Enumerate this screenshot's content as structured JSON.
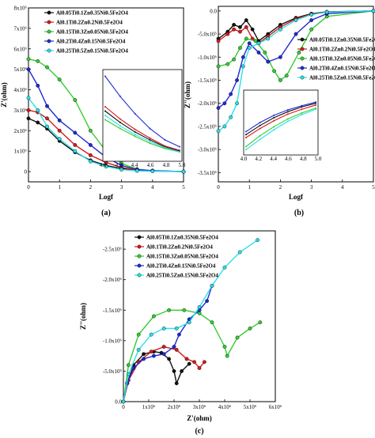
{
  "colors": {
    "black": "#111111",
    "red": "#d7191c",
    "green": "#33cc33",
    "blue": "#1f2ad6",
    "cyan": "#2be0e8"
  },
  "legend_entries": [
    "Al0.05Ti0.1Zn0.35Ni0.5Fe2O4",
    "Al0.1Ti0.2Zn0.2Ni0.5Fe2O4",
    "Al0.15Ti0.3Zn0.05Ni0.5Fe2O4",
    "Al0.2Ti0.4Zn0.15Ni0.5Fe2O4",
    "Al0.25Ti0.5Zn0.15Ni0.5Fe2O4"
  ],
  "chart_data": [
    {
      "panel_label": "(a)",
      "type": "line",
      "xlabel": "Logf",
      "ylabel": "Z'(ohm)",
      "xlim": [
        0,
        5
      ],
      "ylim": [
        -500000,
        8000000
      ],
      "x_ticks": [
        "0",
        "1",
        "2",
        "3",
        "4",
        "5"
      ],
      "y_ticks": [
        "0",
        "1x10⁶",
        "2x10⁶",
        "3x10⁶",
        "4x10⁶",
        "5x10⁶",
        "6x10⁶",
        "7x10⁶",
        "8x10⁶"
      ],
      "series": [
        {
          "name": "Al0.05Ti0.1Zn0.35Ni0.5Fe2O4",
          "color_key": "black",
          "points": [
            [
              0,
              2600000
            ],
            [
              0.3,
              2400000
            ],
            [
              0.6,
              2100000
            ],
            [
              1,
              1500000
            ],
            [
              1.5,
              950000
            ],
            [
              2,
              550000
            ],
            [
              2.5,
              300000
            ],
            [
              3,
              150000
            ],
            [
              3.5,
              60000
            ],
            [
              4,
              30000
            ],
            [
              5,
              0
            ]
          ]
        },
        {
          "name": "Al0.1Ti0.2Zn0.2Ni0.5Fe2O4",
          "color_key": "red",
          "points": [
            [
              0,
              3000000
            ],
            [
              0.3,
              2900000
            ],
            [
              0.6,
              2600000
            ],
            [
              1,
              2000000
            ],
            [
              1.5,
              1300000
            ],
            [
              2,
              800000
            ],
            [
              2.5,
              450000
            ],
            [
              3,
              200000
            ],
            [
              3.5,
              80000
            ],
            [
              4,
              40000
            ],
            [
              5,
              0
            ]
          ]
        },
        {
          "name": "Al0.15Ti0.3Zn0.05Ni0.5Fe2O4",
          "color_key": "green",
          "points": [
            [
              0,
              5500000
            ],
            [
              0.3,
              5400000
            ],
            [
              0.6,
              5100000
            ],
            [
              1,
              4500000
            ],
            [
              1.5,
              3500000
            ],
            [
              2,
              2000000
            ],
            [
              2.5,
              1000000
            ],
            [
              3,
              400000
            ],
            [
              3.5,
              120000
            ],
            [
              4,
              40000
            ],
            [
              5,
              0
            ]
          ]
        },
        {
          "name": "Al0.2Ti0.4Zn0.15Ni0.5Fe2O4",
          "color_key": "blue",
          "points": [
            [
              0,
              5000000
            ],
            [
              0.3,
              4200000
            ],
            [
              0.6,
              3200000
            ],
            [
              1,
              2500000
            ],
            [
              1.5,
              1900000
            ],
            [
              2,
              1300000
            ],
            [
              2.5,
              700000
            ],
            [
              3,
              300000
            ],
            [
              3.5,
              100000
            ],
            [
              4,
              50000
            ],
            [
              5,
              0
            ]
          ]
        },
        {
          "name": "Al0.25Ti0.5Zn0.15Ni0.5Fe2O4",
          "color_key": "cyan",
          "points": [
            [
              0,
              3600000
            ],
            [
              0.3,
              3000000
            ],
            [
              0.6,
              2200000
            ],
            [
              1,
              1600000
            ],
            [
              1.5,
              1000000
            ],
            [
              2,
              500000
            ],
            [
              2.5,
              250000
            ],
            [
              3,
              100000
            ],
            [
              3.5,
              40000
            ],
            [
              4,
              20000
            ],
            [
              5,
              0
            ]
          ]
        }
      ],
      "inset": {
        "x_ticks": [
          "4.0",
          "4.2",
          "4.4",
          "4.6",
          "4.8",
          "5.0"
        ],
        "xlim": [
          4.0,
          5.0
        ],
        "series": [
          {
            "color_key": "black",
            "values": [
              0.55,
              0.42,
              0.31,
              0.22,
              0.14,
              0.09
            ]
          },
          {
            "color_key": "red",
            "values": [
              0.6,
              0.46,
              0.34,
              0.24,
              0.15,
              0.1
            ]
          },
          {
            "color_key": "green",
            "values": [
              0.45,
              0.35,
              0.26,
              0.18,
              0.12,
              0.08
            ]
          },
          {
            "color_key": "blue",
            "values": [
              0.95,
              0.72,
              0.52,
              0.35,
              0.22,
              0.14
            ]
          },
          {
            "color_key": "cyan",
            "values": [
              0.5,
              0.38,
              0.28,
              0.2,
              0.13,
              0.08
            ]
          }
        ]
      }
    },
    {
      "panel_label": "(b)",
      "type": "line",
      "xlabel": "Logf",
      "ylabel": "Z''(ohm)",
      "xlim": [
        0,
        5
      ],
      "ylim": [
        -3700000,
        100000
      ],
      "x_ticks": [
        "0",
        "1",
        "2",
        "3",
        "4",
        "5"
      ],
      "y_ticks": [
        "0.0",
        "-5.0x10⁵",
        "-1.0x10⁶",
        "-1.5x10⁶",
        "-2.0x10⁶",
        "-2.5x10⁶",
        "-3.0x10⁶",
        "-3.5x10⁶"
      ],
      "series": [
        {
          "name": "Al0.05Ti0.1Zn0.35Ni0.5Fe2O4",
          "color_key": "black",
          "points": [
            [
              0,
              -600000
            ],
            [
              0.3,
              -450000
            ],
            [
              0.5,
              -300000
            ],
            [
              0.7,
              -350000
            ],
            [
              0.9,
              -200000
            ],
            [
              1.1,
              -400000
            ],
            [
              1.3,
              -650000
            ],
            [
              1.6,
              -500000
            ],
            [
              2,
              -300000
            ],
            [
              2.5,
              -150000
            ],
            [
              3,
              -60000
            ],
            [
              3.5,
              -20000
            ],
            [
              5,
              0
            ]
          ]
        },
        {
          "name": "Al0.1Ti0.2Zn0.2Ni0.5Fe2O4",
          "color_key": "red",
          "points": [
            [
              0,
              -650000
            ],
            [
              0.3,
              -500000
            ],
            [
              0.5,
              -400000
            ],
            [
              0.7,
              -450000
            ],
            [
              0.9,
              -350000
            ],
            [
              1.1,
              -600000
            ],
            [
              1.3,
              -700000
            ],
            [
              1.6,
              -550000
            ],
            [
              2,
              -350000
            ],
            [
              2.5,
              -170000
            ],
            [
              3,
              -70000
            ],
            [
              3.5,
              -25000
            ],
            [
              5,
              0
            ]
          ]
        },
        {
          "name": "Al0.15Ti0.3Zn0.05Ni0.5Fe2O4",
          "color_key": "green",
          "points": [
            [
              0,
              -1200000
            ],
            [
              0.3,
              -1150000
            ],
            [
              0.5,
              -1050000
            ],
            [
              0.7,
              -800000
            ],
            [
              0.9,
              -600000
            ],
            [
              1.2,
              -650000
            ],
            [
              1.5,
              -900000
            ],
            [
              1.8,
              -1300000
            ],
            [
              2,
              -1500000
            ],
            [
              2.2,
              -1400000
            ],
            [
              2.6,
              -900000
            ],
            [
              3,
              -400000
            ],
            [
              3.5,
              -120000
            ],
            [
              5,
              0
            ]
          ]
        },
        {
          "name": "Al0.2Ti0.4Zn0.15Ni0.5Fe2O4",
          "color_key": "blue",
          "points": [
            [
              0,
              -2100000
            ],
            [
              0.2,
              -2000000
            ],
            [
              0.4,
              -1800000
            ],
            [
              0.6,
              -1500000
            ],
            [
              0.8,
              -1000000
            ],
            [
              1,
              -700000
            ],
            [
              1.3,
              -900000
            ],
            [
              1.6,
              -1100000
            ],
            [
              2,
              -1000000
            ],
            [
              2.5,
              -500000
            ],
            [
              3,
              -200000
            ],
            [
              3.5,
              -60000
            ],
            [
              5,
              0
            ]
          ]
        },
        {
          "name": "Al0.25Ti0.5Zn0.15Ni0.5Fe2O4",
          "color_key": "cyan",
          "points": [
            [
              0,
              -2600000
            ],
            [
              0.2,
              -2500000
            ],
            [
              0.4,
              -2300000
            ],
            [
              0.6,
              -2000000
            ],
            [
              0.8,
              -1200000
            ],
            [
              1,
              -800000
            ],
            [
              1.3,
              -700000
            ],
            [
              1.6,
              -600000
            ],
            [
              2,
              -400000
            ],
            [
              2.5,
              -200000
            ],
            [
              3,
              -80000
            ],
            [
              3.5,
              -25000
            ],
            [
              5,
              0
            ]
          ]
        }
      ],
      "inset": {
        "x_ticks": [
          "4.0",
          "4.2",
          "4.4",
          "4.6",
          "4.8",
          "5.0"
        ],
        "xlim": [
          4.0,
          5.0
        ],
        "series": [
          {
            "color_key": "black",
            "values": [
              0.3,
              0.45,
              0.58,
              0.68,
              0.76,
              0.82
            ]
          },
          {
            "color_key": "red",
            "values": [
              0.25,
              0.4,
              0.53,
              0.64,
              0.72,
              0.79
            ]
          },
          {
            "color_key": "green",
            "values": [
              0.1,
              0.28,
              0.43,
              0.56,
              0.66,
              0.74
            ]
          },
          {
            "color_key": "blue",
            "values": [
              0.35,
              0.5,
              0.62,
              0.71,
              0.78,
              0.84
            ]
          },
          {
            "color_key": "cyan",
            "values": [
              0.05,
              0.22,
              0.38,
              0.52,
              0.63,
              0.72
            ]
          }
        ]
      }
    },
    {
      "panel_label": "(c)",
      "type": "scatter",
      "xlabel": "Z'(ohm)",
      "ylabel": "Z''(ohm)",
      "xlim": [
        0,
        6000000
      ],
      "ylim": [
        0,
        -2800000
      ],
      "x_ticks": [
        "0",
        "1x10⁶",
        "2x10⁶",
        "3x10⁶",
        "4x10⁶",
        "5x10⁶",
        "6x10⁶"
      ],
      "y_ticks": [
        "0.0",
        "-5.0x10⁵",
        "-1.0x10⁶",
        "-1.5x10⁶",
        "-2.0x10⁶",
        "-2.5x10⁶"
      ],
      "series": [
        {
          "name": "Al0.05Ti0.1Zn0.35Ni0.5Fe2O4",
          "color_key": "black",
          "points": [
            [
              0,
              0
            ],
            [
              150000,
              -300000
            ],
            [
              400000,
              -600000
            ],
            [
              800000,
              -780000
            ],
            [
              1200000,
              -820000
            ],
            [
              1500000,
              -800000
            ],
            [
              1800000,
              -700000
            ],
            [
              2000000,
              -500000
            ],
            [
              2100000,
              -300000
            ],
            [
              2300000,
              -500000
            ],
            [
              2600000,
              -620000
            ]
          ]
        },
        {
          "name": "Al0.1Ti0.2Zn0.2Ni0.5Fe2O4",
          "color_key": "red",
          "points": [
            [
              0,
              0
            ],
            [
              200000,
              -350000
            ],
            [
              600000,
              -650000
            ],
            [
              1100000,
              -820000
            ],
            [
              1600000,
              -900000
            ],
            [
              2100000,
              -850000
            ],
            [
              2500000,
              -700000
            ],
            [
              2800000,
              -650000
            ],
            [
              3000000,
              -550000
            ],
            [
              3200000,
              -650000
            ]
          ]
        },
        {
          "name": "Al0.15Ti0.3Zn0.05Ni0.5Fe2O4",
          "color_key": "green",
          "points": [
            [
              0,
              0
            ],
            [
              200000,
              -600000
            ],
            [
              600000,
              -1100000
            ],
            [
              1200000,
              -1400000
            ],
            [
              1800000,
              -1500000
            ],
            [
              2400000,
              -1500000
            ],
            [
              3000000,
              -1450000
            ],
            [
              3500000,
              -1300000
            ],
            [
              4000000,
              -900000
            ],
            [
              4100000,
              -750000
            ],
            [
              4500000,
              -1050000
            ],
            [
              5000000,
              -1200000
            ],
            [
              5400000,
              -1300000
            ]
          ]
        },
        {
          "name": "Al0.2Ti0.4Zn0.15Ni0.5Fe2O4",
          "color_key": "blue",
          "points": [
            [
              0,
              0
            ],
            [
              150000,
              -300000
            ],
            [
              400000,
              -550000
            ],
            [
              800000,
              -700000
            ],
            [
              1200000,
              -750000
            ],
            [
              1600000,
              -780000
            ],
            [
              2000000,
              -900000
            ],
            [
              2200000,
              -1100000
            ],
            [
              2600000,
              -1350000
            ],
            [
              3000000,
              -1500000
            ],
            [
              3300000,
              -1650000
            ],
            [
              3500000,
              -1900000
            ]
          ]
        },
        {
          "name": "Al0.25Ti0.5Zn0.15Ni0.5Fe2O4",
          "color_key": "cyan",
          "points": [
            [
              0,
              0
            ],
            [
              200000,
              -450000
            ],
            [
              600000,
              -850000
            ],
            [
              1100000,
              -1100000
            ],
            [
              1600000,
              -1200000
            ],
            [
              2100000,
              -1200000
            ],
            [
              2600000,
              -1300000
            ],
            [
              3000000,
              -1550000
            ],
            [
              3500000,
              -1900000
            ],
            [
              4000000,
              -2200000
            ],
            [
              4600000,
              -2450000
            ],
            [
              5300000,
              -2650000
            ]
          ]
        }
      ]
    }
  ]
}
